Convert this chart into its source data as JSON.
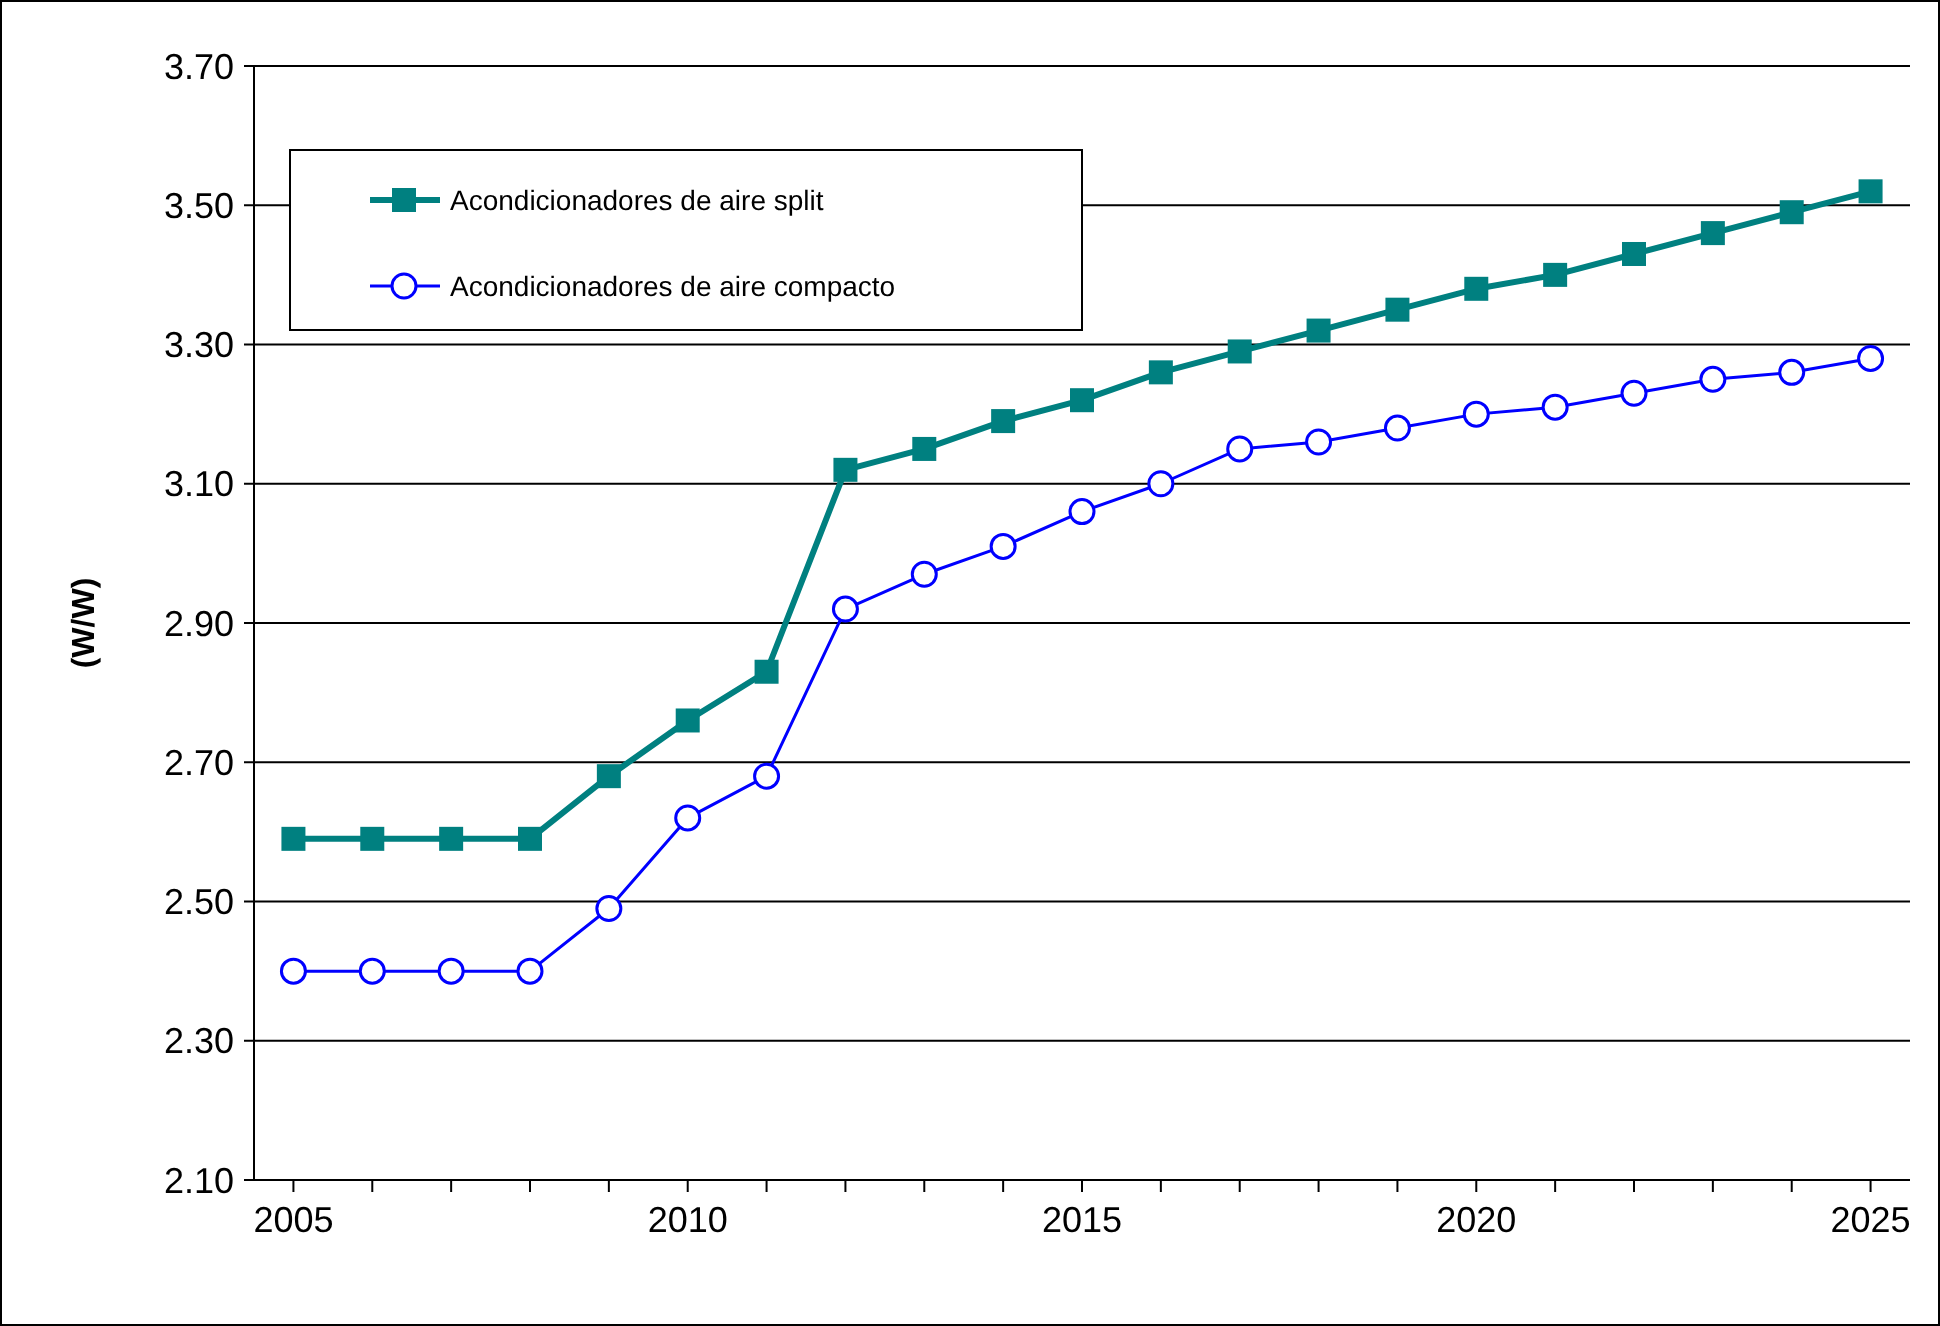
{
  "chart_data": {
    "type": "line",
    "ylabel": "(W/W)",
    "x": [
      2005,
      2006,
      2007,
      2008,
      2009,
      2010,
      2011,
      2012,
      2013,
      2014,
      2015,
      2016,
      2017,
      2018,
      2019,
      2020,
      2021,
      2022,
      2023,
      2024,
      2025
    ],
    "series": [
      {
        "name": "Acondicionadores de aire split",
        "color": "#008080",
        "marker": "square",
        "values": [
          2.59,
          2.59,
          2.59,
          2.59,
          2.68,
          2.76,
          2.83,
          3.12,
          3.15,
          3.19,
          3.22,
          3.26,
          3.29,
          3.32,
          3.35,
          3.38,
          3.4,
          3.43,
          3.46,
          3.49,
          3.52
        ]
      },
      {
        "name": "Acondicionadores de aire compacto",
        "color": "#0000ff",
        "marker": "circle",
        "values": [
          2.4,
          2.4,
          2.4,
          2.4,
          2.49,
          2.62,
          2.68,
          2.92,
          2.97,
          3.01,
          3.06,
          3.1,
          3.15,
          3.16,
          3.18,
          3.2,
          3.21,
          3.23,
          3.25,
          3.26,
          3.28
        ]
      }
    ],
    "xlim": [
      2004.5,
      2025.5
    ],
    "xticks": [
      2005,
      {
        "value": 2006,
        "label": null
      },
      {
        "value": 2007,
        "label": null
      },
      {
        "value": 2008,
        "label": null
      },
      {
        "value": 2009,
        "label": null
      },
      2010,
      {
        "value": 2011,
        "label": null
      },
      {
        "value": 2012,
        "label": null
      },
      {
        "value": 2013,
        "label": null
      },
      {
        "value": 2014,
        "label": null
      },
      2015,
      {
        "value": 2016,
        "label": null
      },
      {
        "value": 2017,
        "label": null
      },
      {
        "value": 2018,
        "label": null
      },
      {
        "value": 2019,
        "label": null
      },
      2020,
      {
        "value": 2021,
        "label": null
      },
      {
        "value": 2022,
        "label": null
      },
      {
        "value": 2023,
        "label": null
      },
      {
        "value": 2024,
        "label": null
      },
      2025
    ],
    "ylim": [
      2.1,
      3.7
    ],
    "yticks": [
      {
        "value": 2.1,
        "label": "2.10"
      },
      {
        "value": 2.3,
        "label": "2.30"
      },
      {
        "value": 2.5,
        "label": "2.50"
      },
      {
        "value": 2.7,
        "label": "2.70"
      },
      {
        "value": 2.9,
        "label": "2.90"
      },
      {
        "value": 3.1,
        "label": "3.10"
      },
      {
        "value": 3.3,
        "label": "3.30"
      },
      {
        "value": 3.5,
        "label": "3.50"
      },
      {
        "value": 3.7,
        "label": "3.70"
      }
    ],
    "grid": "y",
    "legend": "top left"
  }
}
